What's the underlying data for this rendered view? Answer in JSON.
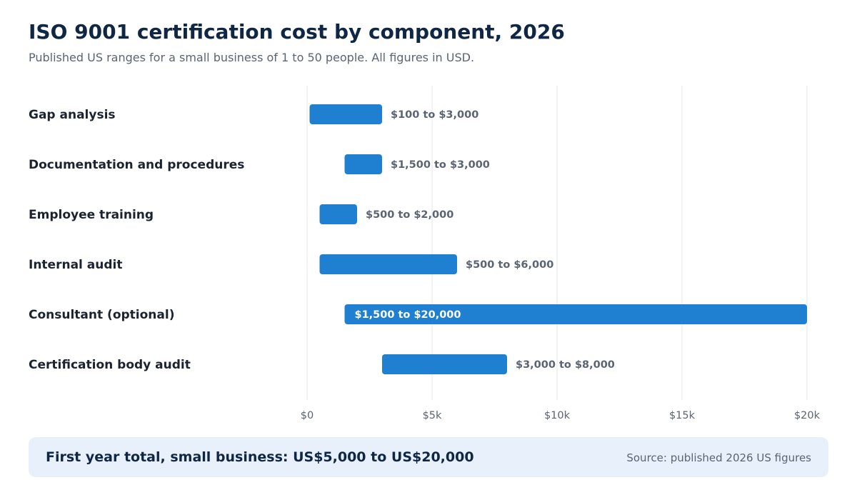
{
  "header": {
    "title": "ISO 9001 certification cost by component, 2026",
    "subtitle": "Published US ranges for a small business of 1 to 50 people. All figures in USD."
  },
  "chart_data": {
    "type": "bar",
    "orientation": "horizontal-range",
    "categories": [
      "Gap analysis",
      "Documentation and procedures",
      "Employee training",
      "Internal audit",
      "Consultant (optional)",
      "Certification body audit"
    ],
    "ranges": [
      {
        "low": 100,
        "high": 3000,
        "label": "$100 to $3,000"
      },
      {
        "low": 1500,
        "high": 3000,
        "label": "$1,500 to $3,000"
      },
      {
        "low": 500,
        "high": 2000,
        "label": "$500 to $2,000"
      },
      {
        "low": 500,
        "high": 6000,
        "label": "$500 to $6,000"
      },
      {
        "low": 1500,
        "high": 20000,
        "label": "$1,500 to $20,000"
      },
      {
        "low": 3000,
        "high": 8000,
        "label": "$3,000 to $8,000"
      }
    ],
    "xlim": [
      0,
      20000
    ],
    "ticks": [
      0,
      5000,
      10000,
      15000,
      20000
    ],
    "tick_labels": [
      "$0",
      "$5k",
      "$10k",
      "$15k",
      "$20k"
    ],
    "grid": "vertical",
    "legend": "none",
    "colors": {
      "bar": "#1f7fd1",
      "grid": "#eceef2",
      "label_outside": "#5b6472",
      "label_inside": "#ffffff"
    }
  },
  "footer": {
    "total": "First year total, small business: US$5,000 to US$20,000",
    "source": "Source: published 2026 US figures"
  }
}
